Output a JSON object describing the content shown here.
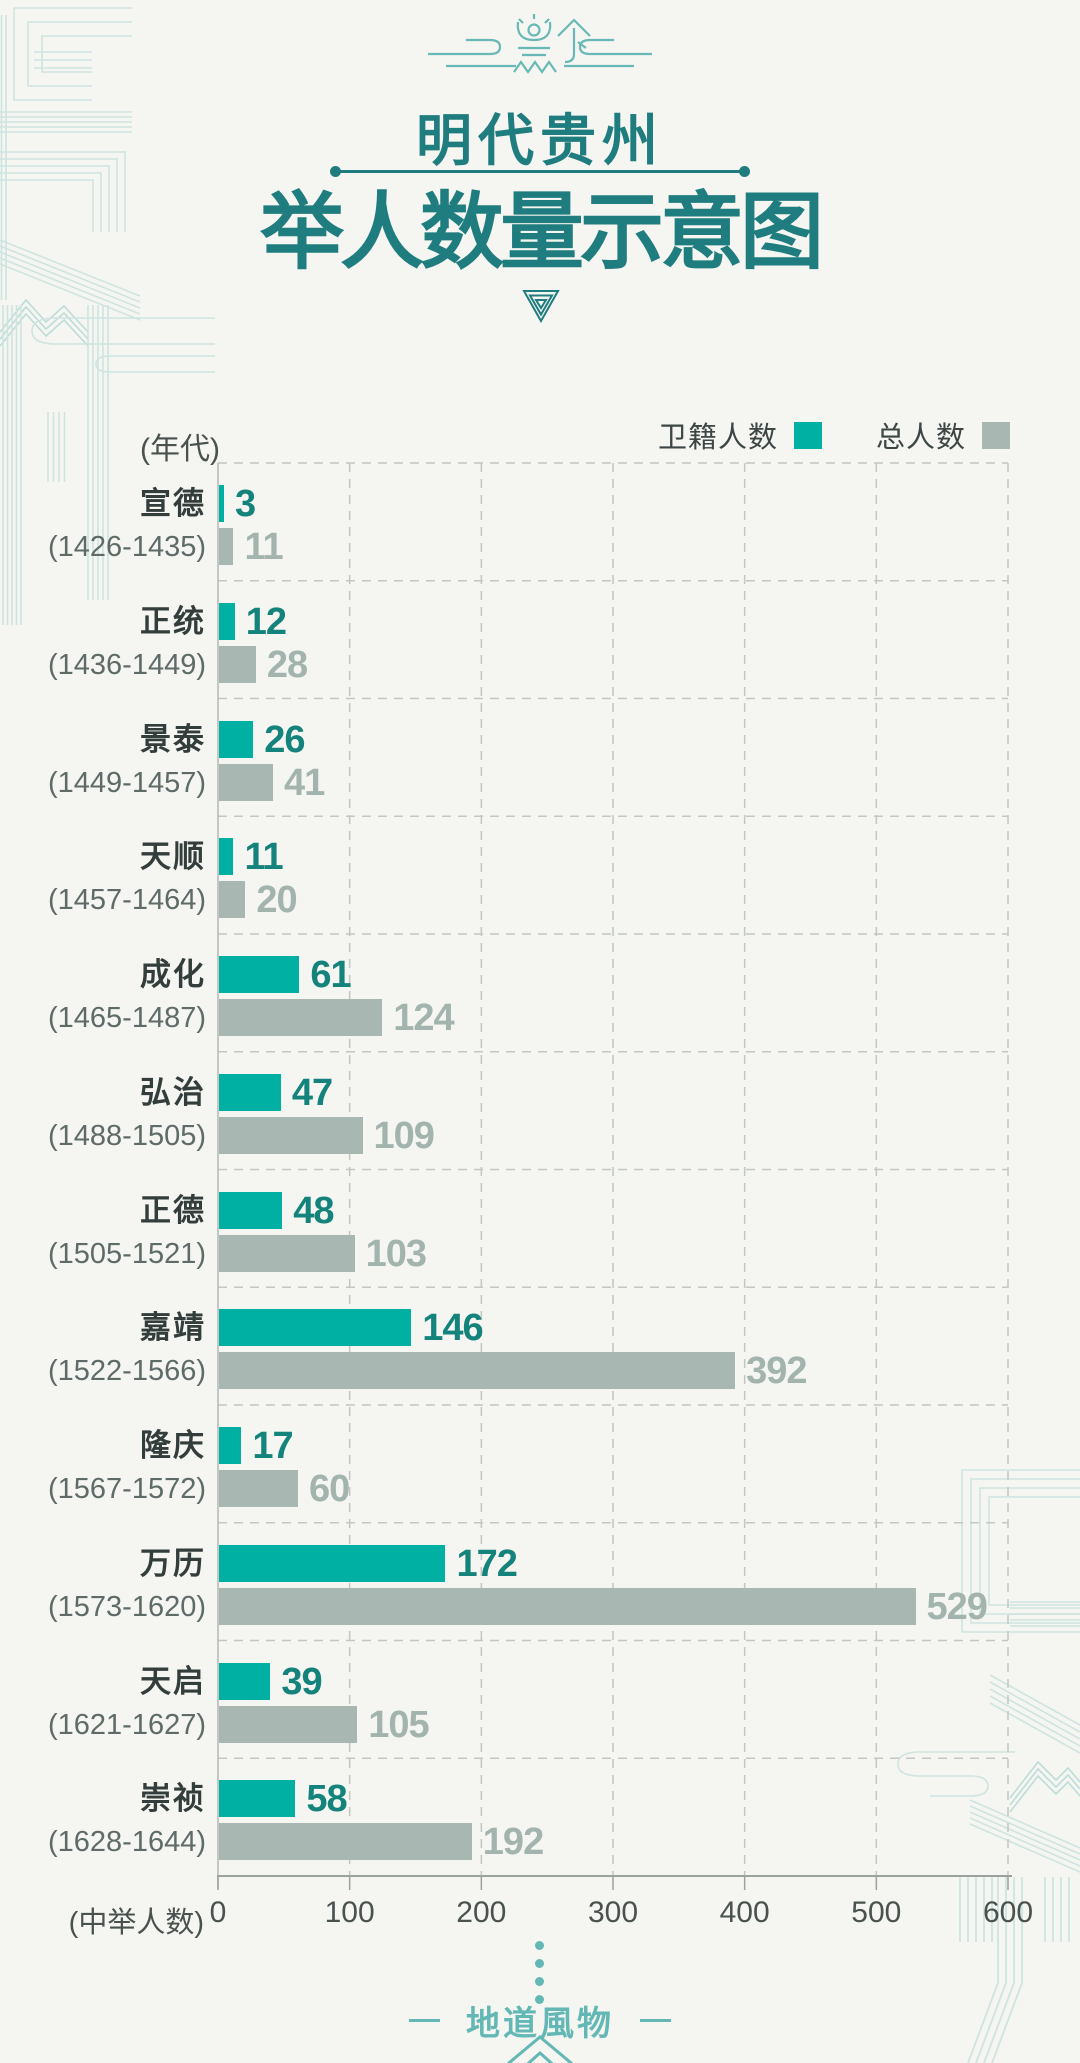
{
  "title": {
    "subtitle": "明代贵州",
    "main": "举人数量示意图"
  },
  "legend": [
    {
      "label": "卫籍人数",
      "color": "#00b1a3"
    },
    {
      "label": "总人数",
      "color": "#a9b7b2"
    }
  ],
  "axis": {
    "y_unit_label": "(年代)",
    "x_unit_label": "(中举人数)",
    "ticks": [
      "0",
      "100",
      "200",
      "300",
      "400",
      "500",
      "600"
    ],
    "max": 600
  },
  "chart_data": {
    "type": "bar",
    "orientation": "horizontal",
    "title": "明代贵州举人数量示意图",
    "xlabel": "(中举人数)",
    "ylabel": "(年代)",
    "xlim": [
      0,
      600
    ],
    "grid": true,
    "legend_position": "top-right",
    "categories": [
      "宣德",
      "正统",
      "景泰",
      "天顺",
      "成化",
      "弘治",
      "正德",
      "嘉靖",
      "隆庆",
      "万历",
      "天启",
      "崇祯"
    ],
    "category_years": [
      "(1426-1435)",
      "(1436-1449)",
      "(1449-1457)",
      "(1457-1464)",
      "(1465-1487)",
      "(1488-1505)",
      "(1505-1521)",
      "(1522-1566)",
      "(1567-1572)",
      "(1573-1620)",
      "(1621-1627)",
      "(1628-1644)"
    ],
    "series": [
      {
        "name": "卫籍人数",
        "color": "#00b1a3",
        "text_color": "#13837b",
        "values": [
          3,
          12,
          26,
          11,
          61,
          47,
          48,
          146,
          17,
          172,
          39,
          58
        ]
      },
      {
        "name": "总人数",
        "color": "#a9b7b2",
        "text_color": "#a3b4af",
        "values": [
          11,
          28,
          41,
          20,
          124,
          109,
          103,
          392,
          60,
          529,
          105,
          192
        ]
      }
    ]
  },
  "footer": {
    "brand": "地道風物"
  },
  "colors": {
    "background": "#f5f5f1",
    "title_teal": "#207d7f",
    "bar_teal": "#00b1a3",
    "bar_gray": "#a9b7b2",
    "value_teal_text": "#13837b",
    "value_gray_text": "#a3b4af",
    "grid_line": "#c2c7c3",
    "axis_line": "#9ba19d",
    "footer_teal": "#63b8b5",
    "decoration_teal": "#cfe4e1"
  }
}
